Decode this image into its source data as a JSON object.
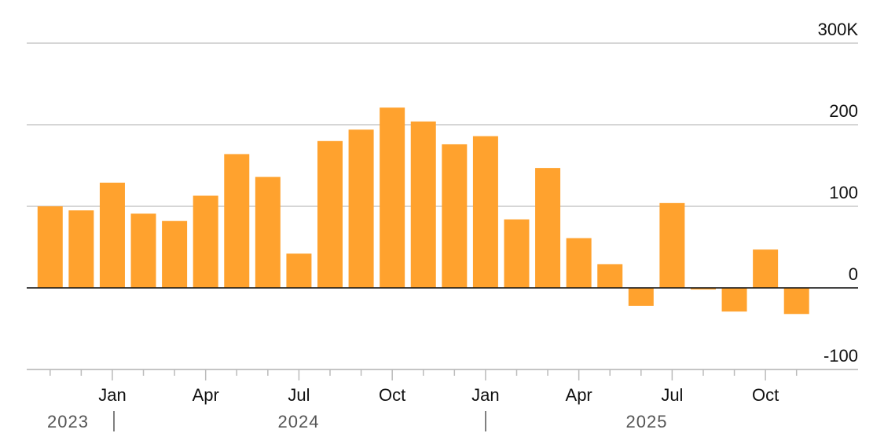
{
  "chart_data": {
    "type": "bar",
    "categories": [
      null,
      null,
      "Jan",
      null,
      null,
      "Apr",
      null,
      null,
      "Jul",
      null,
      null,
      "Oct",
      null,
      null,
      "Jan",
      null,
      null,
      "Apr",
      null,
      null,
      "Jul",
      null,
      null,
      "Oct",
      null
    ],
    "years": [
      "2023",
      "2024",
      "2025"
    ],
    "values": [
      100,
      95,
      129,
      91,
      82,
      113,
      164,
      136,
      42,
      180,
      194,
      221,
      204,
      176,
      186,
      84,
      147,
      61,
      29,
      -22,
      104,
      -2,
      -29,
      47,
      -32
    ],
    "color": "#ffa22e",
    "ylim": [
      -100,
      300
    ],
    "yticks": [
      -100,
      0,
      100,
      200,
      {
        "value": 300,
        "label": "300K"
      }
    ],
    "grid": true
  }
}
